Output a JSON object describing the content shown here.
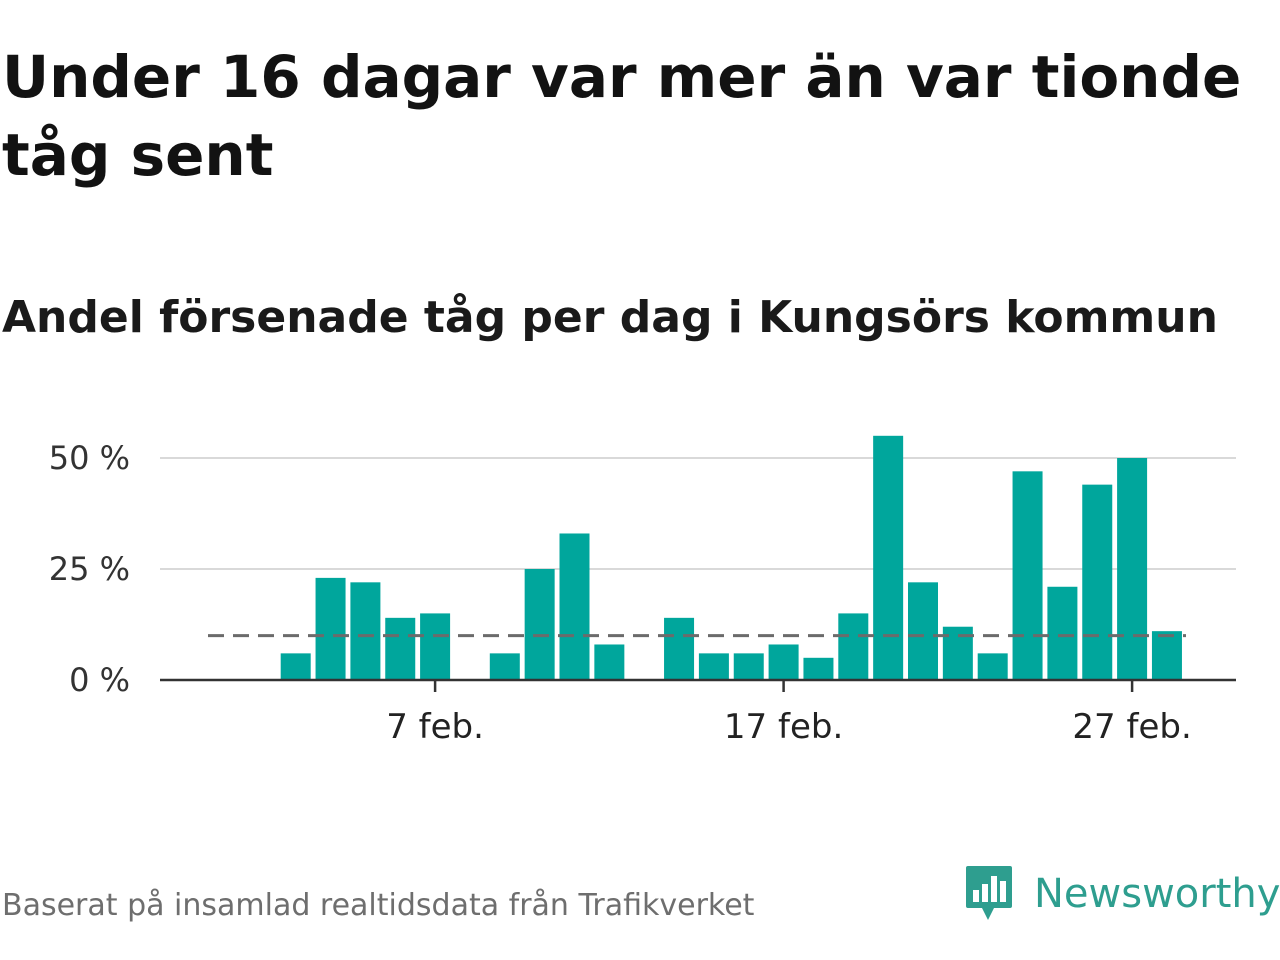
{
  "header": {
    "title": "Under 16 dagar var mer än var tionde tåg sent",
    "subtitle": "Andel försenade tåg per dag i Kungsörs kommun"
  },
  "footer": {
    "source": "Baserat på insamlad realtidsdata från Trafikverket",
    "brand": "Newsworthy",
    "brand_icon": "bar-chart-bubble-icon"
  },
  "colors": {
    "bar": "#00a69c",
    "reference_line": "#6b6b6b",
    "grid": "#d9d9d9",
    "axis": "#333333",
    "brand": "#2e9e8f"
  },
  "chart_data": {
    "type": "bar",
    "x_unit": "day of February",
    "x": [
      1,
      2,
      3,
      4,
      5,
      6,
      7,
      8,
      9,
      10,
      11,
      12,
      13,
      14,
      15,
      16,
      17,
      18,
      19,
      20,
      21,
      22,
      23,
      24,
      25,
      26,
      27,
      28
    ],
    "values": [
      null,
      null,
      6,
      23,
      22,
      14,
      15,
      null,
      6,
      25,
      33,
      8,
      null,
      14,
      6,
      6,
      8,
      5,
      15,
      55,
      22,
      12,
      6,
      47,
      21,
      44,
      50,
      11
    ],
    "x_ticks": [
      {
        "x": 7,
        "label": "7 feb."
      },
      {
        "x": 17,
        "label": "17 feb."
      },
      {
        "x": 27,
        "label": "27 feb."
      }
    ],
    "y_ticks": [
      {
        "value": 0,
        "label": "0 %"
      },
      {
        "value": 25,
        "label": "25 %"
      },
      {
        "value": 50,
        "label": "50 %"
      }
    ],
    "ylim": [
      0,
      56
    ],
    "reference_line": {
      "value": 10,
      "style": "dashed"
    },
    "grid": true,
    "legend": "none"
  }
}
